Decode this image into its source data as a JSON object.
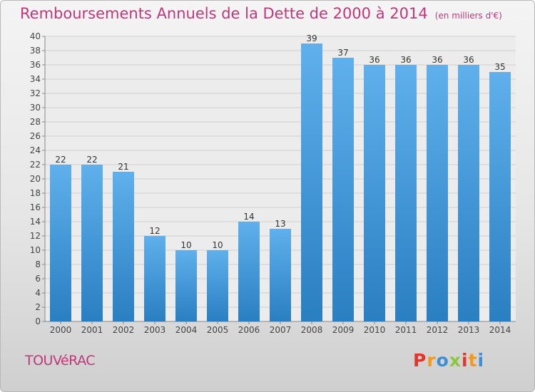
{
  "title": "Remboursements Annuels de la Dette de 2000 à 2014",
  "subtitle": "(en milliers d'€)",
  "commune": "TOUVéRAC",
  "logo": {
    "letters": [
      {
        "ch": "P",
        "color": "#e0362c"
      },
      {
        "ch": "r",
        "color": "#f39a1b"
      },
      {
        "ch": "o",
        "color": "#3d8fd6"
      },
      {
        "ch": "x",
        "color": "#8dc63f"
      },
      {
        "ch": "i",
        "color": "#e0362c"
      },
      {
        "ch": "t",
        "color": "#f39a1b"
      },
      {
        "ch": "i",
        "color": "#3d8fd6"
      }
    ]
  },
  "colors": {
    "title": "#c0377a",
    "bar_top": "#5fb0ec",
    "bar_bottom": "#2a7fc1"
  },
  "chart_data": {
    "type": "bar",
    "title": "Remboursements Annuels de la Dette de 2000 à 2014",
    "subtitle": "(en milliers d'€)",
    "categories": [
      "2000",
      "2001",
      "2002",
      "2003",
      "2004",
      "2005",
      "2006",
      "2007",
      "2008",
      "2009",
      "2010",
      "2011",
      "2012",
      "2013",
      "2014"
    ],
    "values": [
      22,
      22,
      21,
      12,
      10,
      10,
      14,
      13,
      39,
      37,
      36,
      36,
      36,
      36,
      35
    ],
    "ylim": [
      0,
      40
    ],
    "yticks": [
      0,
      2,
      4,
      6,
      8,
      10,
      12,
      14,
      16,
      18,
      20,
      22,
      24,
      26,
      28,
      30,
      32,
      34,
      36,
      38,
      40
    ],
    "grid": true,
    "xlabel": "",
    "ylabel": ""
  }
}
